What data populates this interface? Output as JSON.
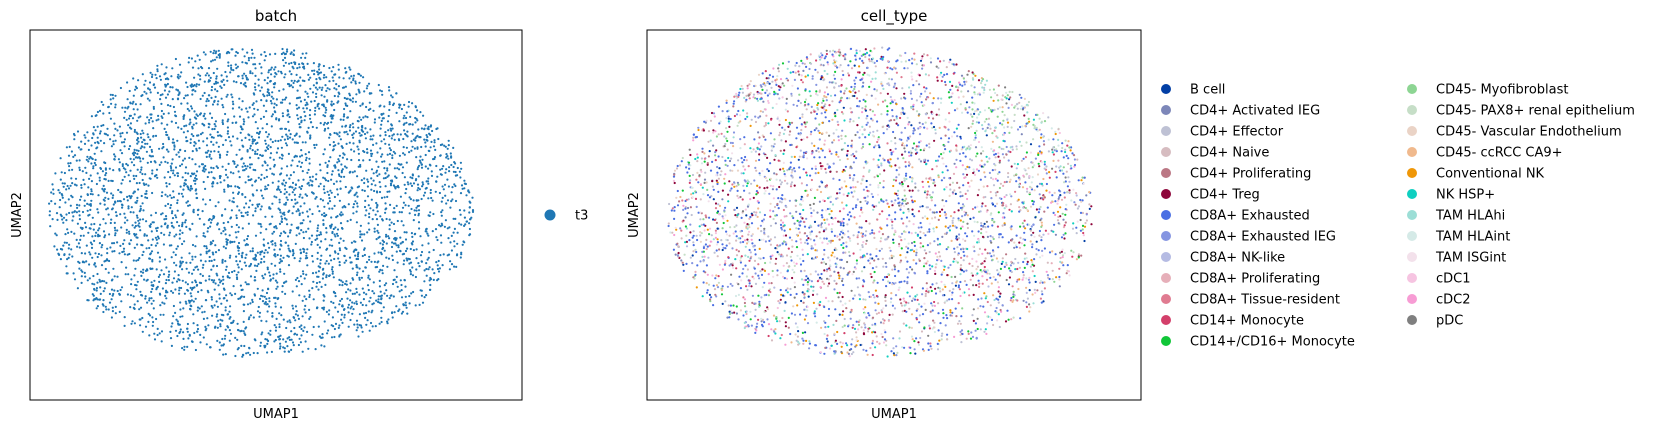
{
  "chart_data": [
    {
      "type": "scatter",
      "title": "batch",
      "xlabel": "UMAP1",
      "ylabel": "UMAP2",
      "grid": false,
      "legend": "right",
      "series": [
        {
          "name": "t3",
          "color": "#1f77b4",
          "point_count": 4000
        }
      ]
    },
    {
      "type": "scatter",
      "title": "cell_type",
      "xlabel": "UMAP1",
      "ylabel": "UMAP2",
      "grid": false,
      "legend": "right",
      "series": [
        {
          "name": "B cell",
          "color": "#023fa5"
        },
        {
          "name": "CD4+ Activated IEG",
          "color": "#7d87b9"
        },
        {
          "name": "CD4+ Effector",
          "color": "#bec1d4"
        },
        {
          "name": "CD4+ Naive",
          "color": "#d6bcc0"
        },
        {
          "name": "CD4+ Proliferating",
          "color": "#bb7784"
        },
        {
          "name": "CD4+ Treg",
          "color": "#8e063b"
        },
        {
          "name": "CD8A+ Exhausted",
          "color": "#4a6fe3"
        },
        {
          "name": "CD8A+ Exhausted IEG",
          "color": "#8595e1"
        },
        {
          "name": "CD8A+ NK-like",
          "color": "#b5bbe3"
        },
        {
          "name": "CD8A+ Proliferating",
          "color": "#e6afb9"
        },
        {
          "name": "CD8A+ Tissue-resident",
          "color": "#e07b91"
        },
        {
          "name": "CD14+ Monocyte",
          "color": "#d33f6a"
        },
        {
          "name": "CD14+/CD16+ Monocyte",
          "color": "#11c638"
        },
        {
          "name": "CD45- Myofibroblast",
          "color": "#8dd593"
        },
        {
          "name": "CD45- PAX8+ renal epithelium",
          "color": "#c6dec7"
        },
        {
          "name": "CD45- Vascular Endothelium",
          "color": "#ead3c6"
        },
        {
          "name": "CD45- ccRCC CA9+",
          "color": "#f0b98d"
        },
        {
          "name": "Conventional NK",
          "color": "#ef9708"
        },
        {
          "name": "NK HSP+",
          "color": "#0fcfc0"
        },
        {
          "name": "TAM HLAhi",
          "color": "#9cded6"
        },
        {
          "name": "TAM HLAint",
          "color": "#d5eae7"
        },
        {
          "name": "TAM ISGint",
          "color": "#f3e1eb"
        },
        {
          "name": "cDC1",
          "color": "#f6c4e1"
        },
        {
          "name": "cDC2",
          "color": "#f79cd4"
        },
        {
          "name": "pDC",
          "color": "#7f7f7f"
        }
      ]
    }
  ]
}
